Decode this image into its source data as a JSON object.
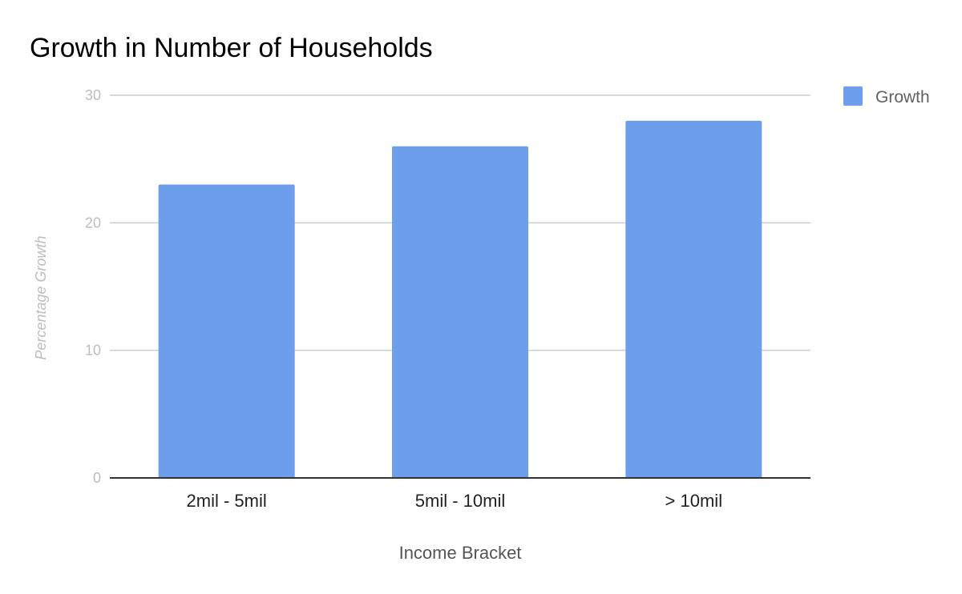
{
  "chart_data": {
    "type": "bar",
    "title": "Growth in Number of Households",
    "xlabel": "Income Bracket",
    "ylabel": "Percentage Growth",
    "categories": [
      "2mil - 5mil",
      "5mil - 10mil",
      "> 10mil"
    ],
    "series": [
      {
        "name": "Growth",
        "values": [
          23,
          26,
          28
        ],
        "color": "#6d9eeb"
      }
    ],
    "yticks": [
      "0",
      "10",
      "20",
      "30"
    ],
    "ylim": [
      0,
      30
    ],
    "grid": true,
    "legend": {
      "position": "top-right"
    }
  }
}
